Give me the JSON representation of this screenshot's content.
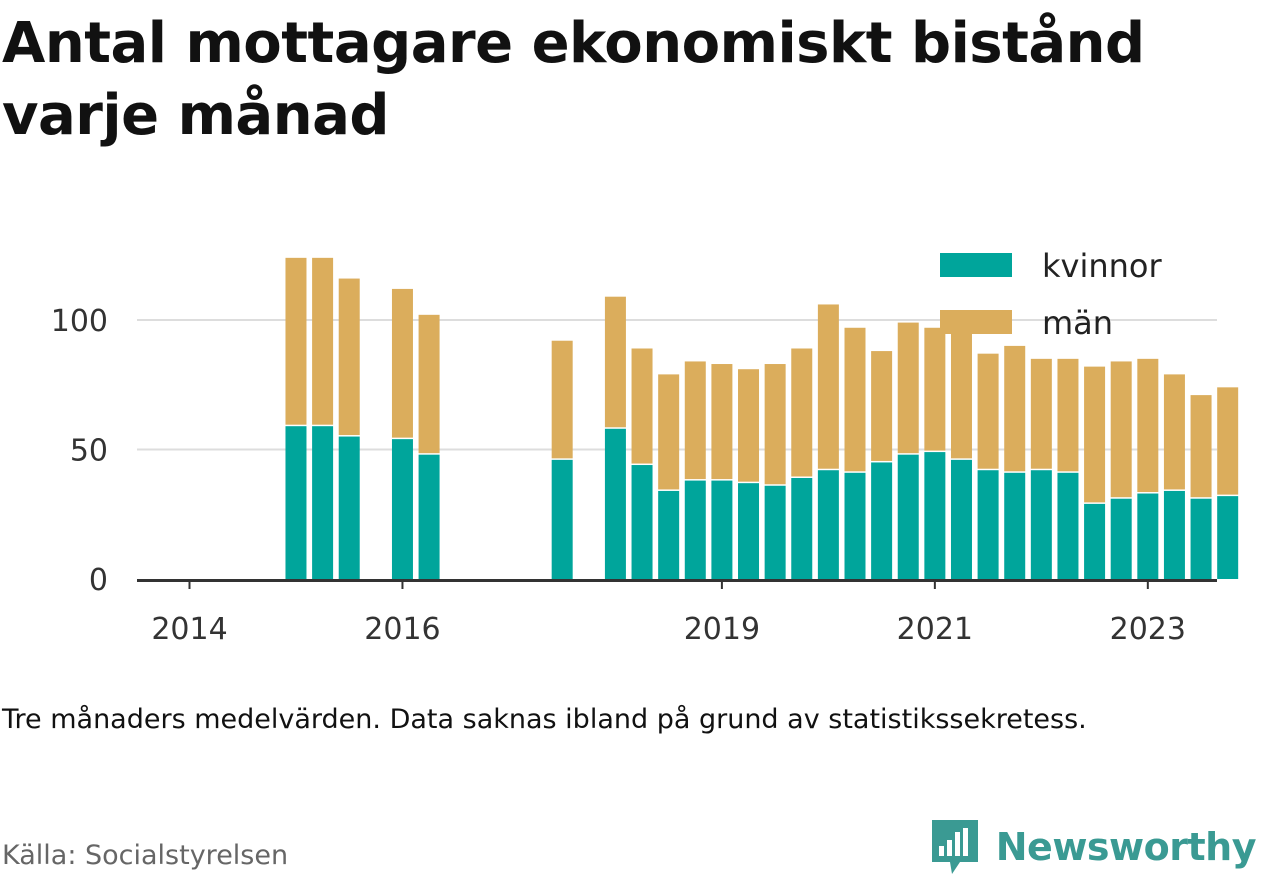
{
  "title": "Antal mottagare ekonomiskt bistånd varje månad",
  "note": "Tre månaders medelvärden. Data saknas ibland på grund av statistikssekretess.",
  "source": "Källa: Socialstyrelsen",
  "brand": "Newsworthy",
  "colors": {
    "kvinnor": "#00a59b",
    "man": "#dbad5c",
    "axis": "#333333",
    "grid": "#dddddd"
  },
  "chart_data": {
    "type": "bar",
    "stacked": true,
    "x_ticks": [
      "2014",
      "2016",
      "2019",
      "2021",
      "2023"
    ],
    "y_ticks": [
      0,
      50,
      100
    ],
    "ylim": [
      0,
      125
    ],
    "grid": true,
    "legend_position": "top-right",
    "categories": [
      "2014-Q1",
      "2014-Q2",
      "2014-Q3",
      "2014-Q4",
      "2015-Q1",
      "2015-Q2",
      "2015-Q3",
      "2015-Q4",
      "2016-Q1",
      "2016-Q2",
      "2016-Q3",
      "2016-Q4",
      "2017-Q1",
      "2017-Q2",
      "2017-Q3",
      "2017-Q4",
      "2018-Q1",
      "2018-Q2",
      "2018-Q3",
      "2018-Q4",
      "2019-Q1",
      "2019-Q2",
      "2019-Q3",
      "2019-Q4",
      "2020-Q1",
      "2020-Q2",
      "2020-Q3",
      "2020-Q4",
      "2021-Q1",
      "2021-Q2",
      "2021-Q3",
      "2021-Q4",
      "2022-Q1",
      "2022-Q2",
      "2022-Q3",
      "2022-Q4",
      "2023-Q1",
      "2023-Q2",
      "2023-Q3",
      "2023-Q4"
    ],
    "series": [
      {
        "name": "kvinnor",
        "values": [
          null,
          null,
          null,
          null,
          59,
          59,
          55,
          null,
          54,
          48,
          null,
          null,
          null,
          null,
          46,
          null,
          58,
          44,
          34,
          38,
          38,
          37,
          36,
          39,
          42,
          41,
          45,
          48,
          49,
          46,
          42,
          41,
          42,
          41,
          29,
          31,
          33,
          34,
          31,
          32
        ]
      },
      {
        "name": "män",
        "values": [
          null,
          null,
          null,
          null,
          65,
          65,
          61,
          null,
          58,
          54,
          null,
          null,
          null,
          null,
          46,
          null,
          51,
          45,
          45,
          46,
          45,
          44,
          47,
          50,
          64,
          56,
          43,
          51,
          48,
          52,
          45,
          49,
          43,
          44,
          53,
          53,
          52,
          45,
          40,
          42
        ]
      }
    ]
  }
}
